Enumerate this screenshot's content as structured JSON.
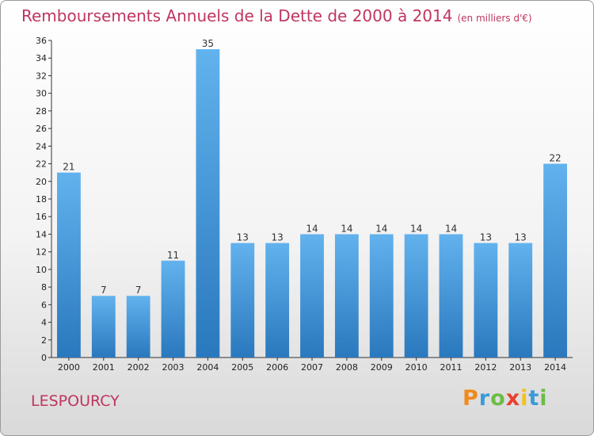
{
  "chart_data": {
    "type": "bar",
    "title": "Remboursements Annuels de la Dette de 2000 à 2014",
    "subtitle": "(en milliers d'€)",
    "categories": [
      "2000",
      "2001",
      "2002",
      "2003",
      "2004",
      "2005",
      "2006",
      "2007",
      "2008",
      "2009",
      "2010",
      "2011",
      "2012",
      "2013",
      "2014"
    ],
    "values": [
      21,
      7,
      7,
      11,
      35,
      13,
      13,
      14,
      14,
      14,
      14,
      14,
      13,
      13,
      22
    ],
    "ylim": [
      0,
      36
    ],
    "yticks": [
      0,
      2,
      4,
      6,
      8,
      10,
      12,
      14,
      16,
      18,
      20,
      22,
      24,
      26,
      28,
      30,
      32,
      34,
      36
    ],
    "grid": false,
    "bar_color": "#3f93d6"
  },
  "commune": "LESPOURCY",
  "logo": {
    "letters": [
      "P",
      "r",
      "o",
      "x",
      "i",
      "t",
      "i"
    ],
    "colors": [
      "#f08a1c",
      "#3a9ad9",
      "#6cbd45",
      "#e9412d",
      "#f2c21b",
      "#3a9ad9",
      "#6cbd45"
    ]
  }
}
